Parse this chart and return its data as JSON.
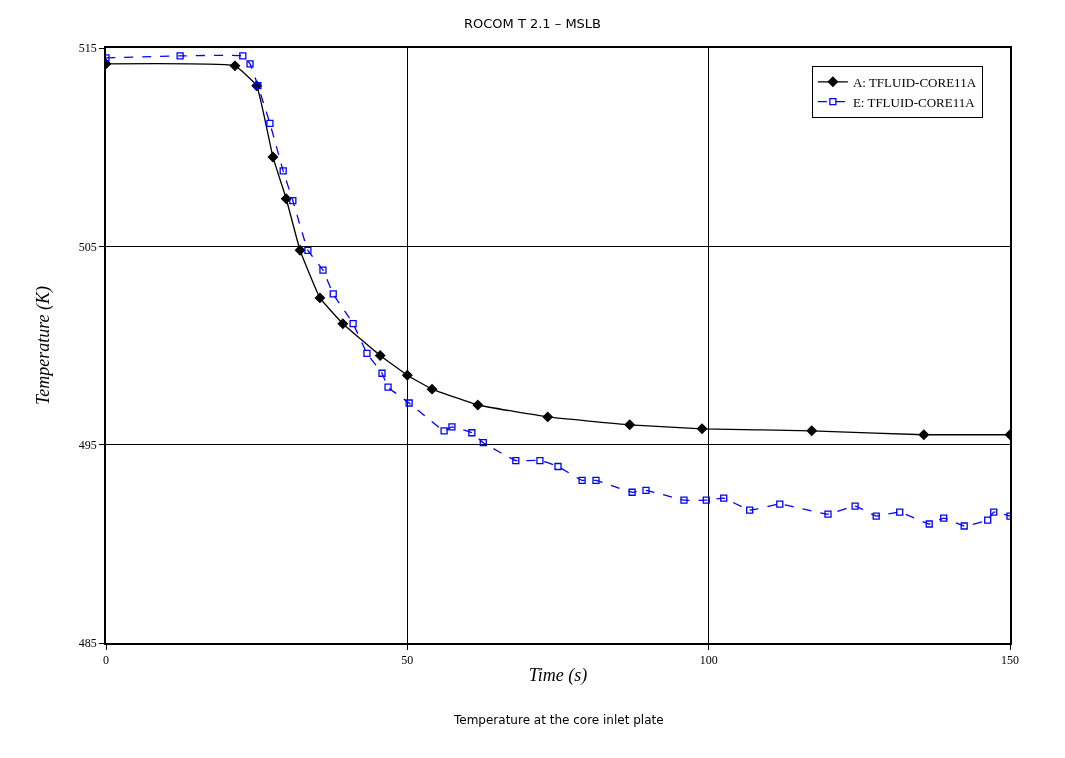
{
  "chart_data": {
    "type": "line",
    "title": "ROCOM T 2.1 – MSLB",
    "xlabel": "Time (s)",
    "ylabel": "Temperature (K)",
    "annotations": [
      "Temperature at the core inlet plate"
    ],
    "xlim": [
      0,
      150
    ],
    "xticks": [
      0,
      50,
      100,
      150
    ],
    "ylim": [
      485,
      515
    ],
    "yticks": [
      485,
      495,
      505,
      515
    ],
    "grid": true,
    "legend": "top right",
    "series": [
      {
        "name": "A: TFLUID-CORE11A",
        "color": "#000000",
        "marker": "diamond",
        "line_style": "solid",
        "x": [
          0,
          21.4,
          25,
          27.7,
          29.9,
          32.2,
          35.5,
          39.3,
          45.5,
          50,
          54.1,
          61.7,
          73.3,
          86.9,
          98.9,
          117.1,
          135.7,
          150
        ],
        "values": [
          514.2,
          514.1,
          513.1,
          509.5,
          507.4,
          504.8,
          502.4,
          501.1,
          499.5,
          498.5,
          497.8,
          497.0,
          496.4,
          496.0,
          495.8,
          495.7,
          495.5,
          495.5
        ]
      },
      {
        "name": "E: TFLUID-CORE11A",
        "color": "#0000ff",
        "marker": "square",
        "line_style": "dashed",
        "x": [
          0,
          12.3,
          22.7,
          23.9,
          25.2,
          27.2,
          29.4,
          31.0,
          33.5,
          36,
          37.7,
          41,
          43.3,
          45.8,
          46.8,
          50.3,
          56.1,
          57.4,
          60.7,
          62.6,
          68.0,
          72.0,
          75.0,
          79.0,
          81.3,
          87.3,
          89.6,
          95.9,
          99.6,
          102.5,
          106.8,
          111.8,
          119.8,
          124.3,
          127.8,
          131.7,
          136.6,
          139.0,
          142.4,
          146.3,
          147.3,
          150
        ],
        "values": [
          514.5,
          514.6,
          514.6,
          514.2,
          513.1,
          511.2,
          508.8,
          507.3,
          504.8,
          503.8,
          502.6,
          501.1,
          499.6,
          498.6,
          497.9,
          497.1,
          495.7,
          495.9,
          495.6,
          495.1,
          494.2,
          494.2,
          493.9,
          493.2,
          493.2,
          492.6,
          492.7,
          492.2,
          492.2,
          492.3,
          491.7,
          492.0,
          491.5,
          491.9,
          491.4,
          491.6,
          491.0,
          491.3,
          490.9,
          491.2,
          491.6,
          491.4
        ]
      }
    ]
  }
}
